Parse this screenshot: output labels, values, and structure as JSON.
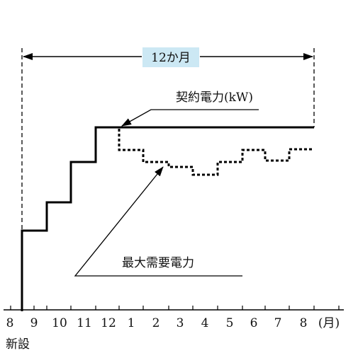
{
  "span_label": "12か月",
  "contract_label": "契約電力(kW)",
  "demand_label": "最大需要電力",
  "start_label": "新設",
  "x_axis": {
    "ticks": [
      "8",
      "9",
      "10",
      "11",
      "12",
      "1",
      "2",
      "3",
      "4",
      "5",
      "6",
      "7",
      "8"
    ],
    "unit": "(月)"
  },
  "colors": {
    "line": "#000000",
    "span_box": "#cce8f4"
  },
  "chart_data": {
    "type": "line",
    "series": [
      {
        "name": "契約電力(kW)",
        "style": "solid",
        "steps": [
          [
            0,
            1.0
          ],
          [
            1,
            1.8
          ],
          [
            2,
            3.0
          ],
          [
            3,
            4.3
          ],
          [
            4,
            5.3
          ],
          [
            12,
            5.3
          ]
        ]
      },
      {
        "name": "最大需要電力",
        "style": "dotted",
        "steps": [
          [
            4,
            5.3
          ],
          [
            4.9,
            4.4
          ],
          [
            5.9,
            3.9
          ],
          [
            6.9,
            3.8
          ],
          [
            7.9,
            3.5
          ],
          [
            8.8,
            3.9
          ],
          [
            9.8,
            4.4
          ],
          [
            10.8,
            4.0
          ],
          [
            11.6,
            4.5
          ],
          [
            12.2,
            4.5
          ]
        ]
      }
    ]
  }
}
